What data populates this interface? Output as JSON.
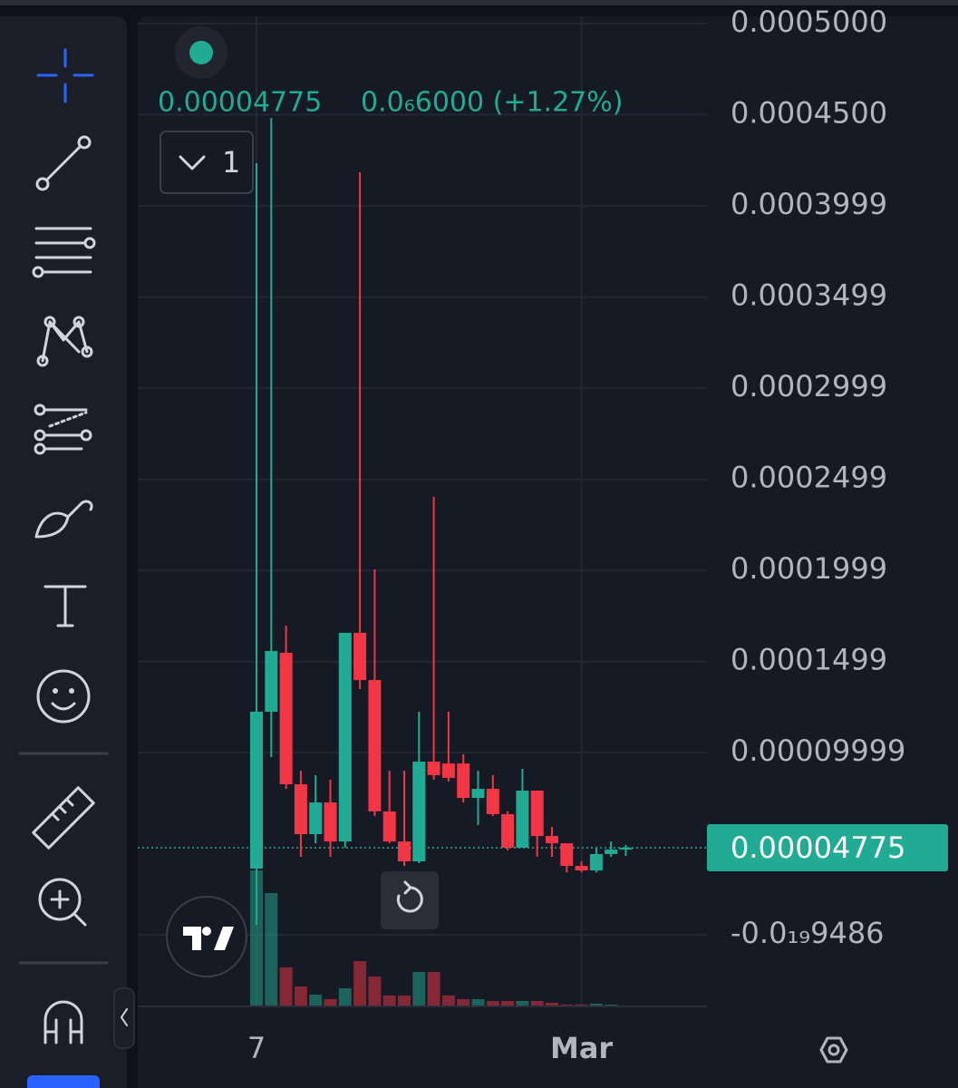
{
  "chart_data": {
    "type": "candlestick",
    "header_price": "0.00004775",
    "header_change": "0.0₆6000 (+1.27%)",
    "interval_button": "1",
    "last_price": {
      "value": 4.775e-05,
      "label": "0.00004775"
    },
    "categories": [
      "7",
      null,
      null,
      null,
      null,
      null,
      null,
      null,
      null,
      null,
      null,
      null,
      null,
      null,
      null,
      null,
      null,
      null,
      null,
      null,
      null,
      null,
      "Mar",
      null,
      null,
      null
    ],
    "open": [
      3.63e-05,
      0.0001224,
      0.0001547,
      8.26e-05,
      5.52e-05,
      7.26e-05,
      5.12e-05,
      0.0001657,
      0.0001398,
      6.77e-05,
      5.12e-05,
      4.03e-05,
      9.5e-05,
      9.4e-05,
      9.4e-05,
      7.51e-05,
      8.01e-05,
      6.62e-05,
      4.78e-05,
      7.91e-05,
      5.42e-05,
      5.02e-05,
      3.78e-05,
      3.53e-05,
      4.43e-05,
      4.68e-05
    ],
    "close": [
      0.0001224,
      0.0001557,
      8.26e-05,
      5.52e-05,
      7.26e-05,
      5.12e-05,
      0.0001657,
      0.0001398,
      6.77e-05,
      5.12e-05,
      4.03e-05,
      9.5e-05,
      8.76e-05,
      8.61e-05,
      7.51e-05,
      8.01e-05,
      6.62e-05,
      4.78e-05,
      7.91e-05,
      5.42e-05,
      5.02e-05,
      3.78e-05,
      3.53e-05,
      4.43e-05,
      4.68e-05,
      4.775e-05
    ],
    "high": [
      0.0004234,
      0.0004482,
      0.0001696,
      9e-05,
      8.76e-05,
      8.51e-05,
      0.0001657,
      0.0004184,
      0.0002005,
      9e-05,
      9e-05,
      0.0001224,
      0.0002403,
      0.0001224,
      9.9e-05,
      9e-05,
      8.76e-05,
      6.77e-05,
      9.1e-05,
      7.91e-05,
      5.92e-05,
      5.02e-05,
      4.03e-05,
      4.78e-05,
      5.12e-05,
      4.93e-05
    ],
    "low": [
      5.5e-06,
      9.75e-05,
      8.01e-05,
      4.28e-05,
      5.02e-05,
      4.28e-05,
      4.78e-05,
      0.0001348,
      6.52e-05,
      5.02e-05,
      3.78e-05,
      3.93e-05,
      8.51e-05,
      8.41e-05,
      7.26e-05,
      6.02e-05,
      6.52e-05,
      4.63e-05,
      4.78e-05,
      4.28e-05,
      4.28e-05,
      3.43e-05,
      3.43e-05,
      3.43e-05,
      4.28e-05,
      4.33e-05
    ],
    "volume": [
      150,
      125,
      43,
      22,
      13,
      8,
      20,
      50,
      33,
      12,
      12,
      38,
      38,
      12,
      8,
      8,
      6,
      6,
      6,
      6,
      4,
      2,
      2,
      3,
      2,
      1
    ],
    "up_color": "#22ab94",
    "down_color": "#f23645",
    "ylim": [
      -3.93e-05,
      0.000504
    ],
    "yticks": [
      {
        "value": 0.0005,
        "label": "0.0005000"
      },
      {
        "value": 0.00045,
        "label": "0.0004500"
      },
      {
        "value": 0.0003999,
        "label": "0.0003999"
      },
      {
        "value": 0.0003499,
        "label": "0.0003499"
      },
      {
        "value": 0.0002999,
        "label": "0.0002999"
      },
      {
        "value": 0.0002499,
        "label": "0.0002499"
      },
      {
        "value": 0.0001999,
        "label": "0.0001999"
      },
      {
        "value": 0.0001499,
        "label": "0.0001499"
      },
      {
        "value": 9.999e-05,
        "label": "0.00009999"
      },
      {
        "value": -9.486e-20,
        "label": "-0.0₁₉9486"
      }
    ],
    "grid": true
  }
}
